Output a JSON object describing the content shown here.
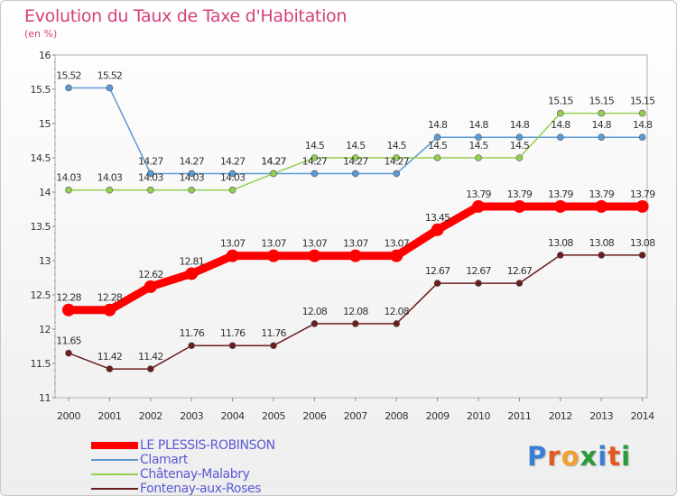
{
  "header": {
    "title": "Evolution du Taux de Taxe d'Habitation",
    "subtitle": "(en %)"
  },
  "chart_data": {
    "type": "line",
    "title": "Evolution du Taux de Taxe d'Habitation",
    "ylabel": "(en %)",
    "x": [
      2000,
      2001,
      2002,
      2003,
      2004,
      2005,
      2006,
      2007,
      2008,
      2009,
      2010,
      2011,
      2012,
      2013,
      2014
    ],
    "ylim": [
      11,
      16
    ],
    "yticks": [
      "11",
      "11.5",
      "12",
      "12.5",
      "13",
      "13.5",
      "14",
      "14.5",
      "15",
      "15.5",
      "16"
    ],
    "grid": false,
    "legend_position": "bottom-left",
    "series": [
      {
        "name": "LE PLESSIS-ROBINSON",
        "color": "#ff0000",
        "values": [
          12.28,
          12.28,
          12.62,
          12.81,
          13.07,
          13.07,
          13.07,
          13.07,
          13.07,
          13.45,
          13.79,
          13.79,
          13.79,
          13.79,
          13.79
        ],
        "labels": [
          "12.28",
          "12.28",
          "12.62",
          "12.81",
          "13.07",
          "13.07",
          "13.07",
          "13.07",
          "13.07",
          "13.45",
          "13.79",
          "13.79",
          "13.79",
          "13.79",
          "13.79"
        ]
      },
      {
        "name": "Clamart",
        "color": "#5b9bd5",
        "values": [
          15.52,
          15.52,
          14.27,
          14.27,
          14.27,
          14.27,
          14.27,
          14.27,
          14.27,
          14.8,
          14.8,
          14.8,
          14.8,
          14.8,
          14.8
        ],
        "labels": [
          "15.52",
          "15.52",
          "14.27",
          "14.27",
          "14.27",
          "14.27",
          "14.27",
          "14.27",
          "14.27",
          "14.8",
          "14.8",
          "14.8",
          "14.8",
          "14.8",
          "14.8"
        ]
      },
      {
        "name": "Châtenay-Malabry",
        "color": "#92d050",
        "values": [
          14.03,
          14.03,
          14.03,
          14.03,
          14.03,
          14.27,
          14.5,
          14.5,
          14.5,
          14.5,
          14.5,
          14.5,
          15.15,
          15.15,
          15.15
        ],
        "labels": [
          "14.03",
          "14.03",
          "14.03",
          "14.03",
          "14.03",
          "14.27",
          "14.5",
          "14.5",
          "14.5",
          "14.5",
          "14.5",
          "14.5",
          "15.15",
          "15.15",
          "15.15"
        ]
      },
      {
        "name": "Fontenay-aux-Roses",
        "color": "#6b1d1d",
        "values": [
          11.65,
          11.42,
          11.42,
          11.76,
          11.76,
          11.76,
          12.08,
          12.08,
          12.08,
          12.67,
          12.67,
          12.67,
          13.08,
          13.08,
          13.08
        ],
        "labels": [
          "11.65",
          "11.42",
          "11.42",
          "11.76",
          "11.76",
          "11.76",
          "12.08",
          "12.08",
          "12.08",
          "12.67",
          "12.67",
          "12.67",
          "13.08",
          "13.08",
          "13.08"
        ]
      }
    ]
  },
  "legend": {
    "items": [
      {
        "label": "LE PLESSIS-ROBINSON",
        "color": "#ff0000"
      },
      {
        "label": "Clamart",
        "color": "#5b9bd5"
      },
      {
        "label": "Châtenay-Malabry",
        "color": "#92d050"
      },
      {
        "label": "Fontenay-aux-Roses",
        "color": "#6b1d1d"
      }
    ]
  },
  "logo": {
    "letters": [
      "P",
      "r",
      "o",
      "x",
      "i",
      "t",
      "i"
    ],
    "colors": [
      "#3a7fd5",
      "#e25a1c",
      "#f0a030",
      "#2a9a3a",
      "#3a7fd5",
      "#e25a1c",
      "#2a9a3a"
    ]
  }
}
